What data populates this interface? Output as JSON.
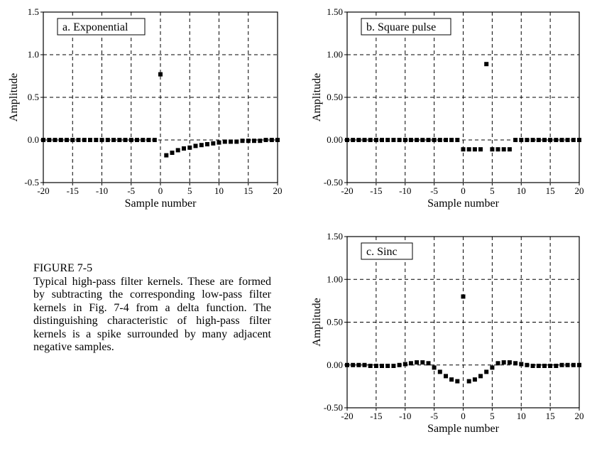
{
  "caption": {
    "title": "FIGURE 7-5",
    "text": "Typical high-pass filter kernels.  These are formed by subtracting the corresponding low-pass filter kernels in Fig. 7-4 from a delta function. The distinguishing characteristic of high-pass filter kernels is a spike surrounded by many adjacent negative samples."
  },
  "chart_data": [
    {
      "type": "scatter",
      "title": "a. Exponential",
      "xlabel": "Sample number",
      "ylabel": "Amplitude",
      "xlim": [
        -20,
        20
      ],
      "ylim": [
        -0.5,
        1.5
      ],
      "xticks": [
        -20,
        -15,
        -10,
        -5,
        0,
        5,
        10,
        15,
        20
      ],
      "xtick_labels": [
        "-20",
        "-15",
        "-10",
        "-5",
        "0",
        "5",
        "10",
        "15",
        "20"
      ],
      "yticks": [
        -0.5,
        0.0,
        0.5,
        1.0,
        1.5
      ],
      "ytick_labels": [
        "-0.5",
        "0.0",
        "0.5",
        "1.0",
        "1.5"
      ],
      "grid": true,
      "x": [
        -20,
        -19,
        -18,
        -17,
        -16,
        -15,
        -14,
        -13,
        -12,
        -11,
        -10,
        -9,
        -8,
        -7,
        -6,
        -5,
        -4,
        -3,
        -2,
        -1,
        0,
        1,
        2,
        3,
        4,
        5,
        6,
        7,
        8,
        9,
        10,
        11,
        12,
        13,
        14,
        15,
        16,
        17,
        18,
        19,
        20
      ],
      "values": [
        0,
        0,
        0,
        0,
        0,
        0,
        0,
        0,
        0,
        0,
        0,
        0,
        0,
        0,
        0,
        0,
        0,
        0,
        0,
        0,
        0.77,
        -0.18,
        -0.15,
        -0.12,
        -0.1,
        -0.09,
        -0.07,
        -0.06,
        -0.05,
        -0.04,
        -0.03,
        -0.02,
        -0.02,
        -0.02,
        -0.01,
        -0.01,
        -0.01,
        -0.01,
        0,
        0,
        0
      ]
    },
    {
      "type": "scatter",
      "title": "b. Square pulse",
      "xlabel": "Sample number",
      "ylabel": "Amplitude",
      "xlim": [
        -20,
        20
      ],
      "ylim": [
        -0.5,
        1.5
      ],
      "xticks": [
        -20,
        -15,
        -10,
        -5,
        0,
        5,
        10,
        15,
        20
      ],
      "xtick_labels": [
        "-20",
        "-15",
        "-10",
        "-5",
        "0",
        "5",
        "10",
        "15",
        "20"
      ],
      "yticks": [
        -0.5,
        0.0,
        0.5,
        1.0,
        1.5
      ],
      "ytick_labels": [
        "-0.50",
        "0.00",
        "0.50",
        "1.00",
        "1.50"
      ],
      "grid": true,
      "x": [
        -20,
        -19,
        -18,
        -17,
        -16,
        -15,
        -14,
        -13,
        -12,
        -11,
        -10,
        -9,
        -8,
        -7,
        -6,
        -5,
        -4,
        -3,
        -2,
        -1,
        0,
        1,
        2,
        3,
        4,
        5,
        6,
        7,
        8,
        9,
        10,
        11,
        12,
        13,
        14,
        15,
        16,
        17,
        18,
        19,
        20
      ],
      "values": [
        0,
        0,
        0,
        0,
        0,
        0,
        0,
        0,
        0,
        0,
        0,
        0,
        0,
        0,
        0,
        0,
        0,
        0,
        0,
        0,
        -0.11,
        -0.11,
        -0.11,
        -0.11,
        0.89,
        -0.11,
        -0.11,
        -0.11,
        -0.11,
        0,
        0,
        0,
        0,
        0,
        0,
        0,
        0,
        0,
        0,
        0,
        0
      ]
    },
    {
      "type": "scatter",
      "title": "c. Sinc",
      "xlabel": "Sample number",
      "ylabel": "Amplitude",
      "xlim": [
        -20,
        20
      ],
      "ylim": [
        -0.5,
        1.5
      ],
      "xticks": [
        -20,
        -15,
        -10,
        -5,
        0,
        5,
        10,
        15,
        20
      ],
      "xtick_labels": [
        "-20",
        "-15",
        "-10",
        "-5",
        "0",
        "5",
        "10",
        "15",
        "20"
      ],
      "yticks": [
        -0.5,
        0.0,
        0.5,
        1.0,
        1.5
      ],
      "ytick_labels": [
        "-0.50",
        "0.00",
        "0.50",
        "1.00",
        "1.50"
      ],
      "grid": true,
      "x": [
        -20,
        -19,
        -18,
        -17,
        -16,
        -15,
        -14,
        -13,
        -12,
        -11,
        -10,
        -9,
        -8,
        -7,
        -6,
        -5,
        -4,
        -3,
        -2,
        -1,
        0,
        1,
        2,
        3,
        4,
        5,
        6,
        7,
        8,
        9,
        10,
        11,
        12,
        13,
        14,
        15,
        16,
        17,
        18,
        19,
        20
      ],
      "values": [
        0,
        0,
        0,
        0,
        -0.01,
        -0.01,
        -0.01,
        -0.01,
        -0.01,
        0,
        0.01,
        0.02,
        0.03,
        0.03,
        0.02,
        -0.03,
        -0.08,
        -0.13,
        -0.17,
        -0.19,
        0.8,
        -0.19,
        -0.17,
        -0.13,
        -0.08,
        -0.03,
        0.02,
        0.03,
        0.03,
        0.02,
        0.01,
        0,
        -0.01,
        -0.01,
        -0.01,
        -0.01,
        -0.01,
        0,
        0,
        0,
        0
      ]
    }
  ]
}
